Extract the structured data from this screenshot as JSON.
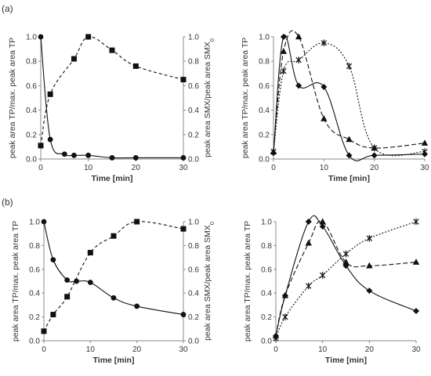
{
  "panel_labels": {
    "a": "(a)",
    "b": "(b)"
  },
  "chart_data": [
    {
      "type": "line",
      "panel": "(a)",
      "position": "left",
      "xlabel": "Time [min]",
      "ylabel": "peak area TP/max. peak area TP",
      "y2label": "peak area SMX/peak area SMX",
      "y2label_sub": "0",
      "xlim": [
        0,
        30
      ],
      "ylim": [
        0,
        1.0
      ],
      "y2lim": [
        0,
        1.0
      ],
      "xticks": [
        0,
        10,
        20,
        30
      ],
      "yticks": [
        "0.0",
        "0.2",
        "0.4",
        "0.6",
        "0.8",
        "1.0"
      ],
      "y2ticks": [
        "0.0",
        "0.2",
        "0.4",
        "0.6",
        "0.8",
        "1.0"
      ],
      "series": [
        {
          "marker": "circle",
          "line": "solid",
          "axis": "left",
          "x": [
            0,
            2,
            5,
            7,
            10,
            15,
            20,
            30
          ],
          "y": [
            1.0,
            0.16,
            0.04,
            0.03,
            0.03,
            0.01,
            0.01,
            0.01
          ]
        },
        {
          "marker": "square",
          "line": "dashed",
          "axis": "right",
          "x": [
            0,
            2,
            7,
            10,
            15,
            20,
            30
          ],
          "y": [
            0.11,
            0.53,
            0.82,
            1.0,
            0.89,
            0.76,
            0.65
          ]
        }
      ]
    },
    {
      "type": "line",
      "panel": "(a)",
      "position": "right",
      "xlabel": "Time [min]",
      "ylabel": "peak area TP/max. peak area TP",
      "xlim": [
        0,
        30
      ],
      "ylim": [
        0,
        1.0
      ],
      "xticks": [
        0,
        10,
        20,
        30
      ],
      "yticks": [
        "0.0",
        "0.2",
        "0.4",
        "0.6",
        "0.8",
        "1.0"
      ],
      "series": [
        {
          "marker": "diamond",
          "line": "solid",
          "x": [
            0,
            2,
            5,
            10,
            15,
            20,
            30
          ],
          "y": [
            0.05,
            1.0,
            0.6,
            0.59,
            0.03,
            0.03,
            0.04
          ]
        },
        {
          "marker": "triangle",
          "line": "longdash",
          "x": [
            0,
            2,
            5,
            10,
            15,
            20,
            30
          ],
          "y": [
            0.06,
            0.88,
            1.0,
            0.33,
            0.16,
            0.09,
            0.13
          ]
        },
        {
          "marker": "star",
          "line": "dotted",
          "x": [
            0,
            2,
            5,
            10,
            15,
            20,
            30
          ],
          "y": [
            0.06,
            0.72,
            0.81,
            0.95,
            0.76,
            0.09,
            0.06
          ]
        }
      ]
    },
    {
      "type": "line",
      "panel": "(b)",
      "position": "left",
      "xlabel": "Time [min]",
      "ylabel": "peak area TP/max. peak area TP",
      "y2label": "peak area SMX/peak area SMX",
      "y2label_sub": "0",
      "xlim": [
        0,
        30
      ],
      "ylim": [
        0,
        1.0
      ],
      "y2lim": [
        0,
        1.0
      ],
      "xticks": [
        0,
        10,
        20,
        30
      ],
      "yticks": [
        "0.0",
        "0.2",
        "0.4",
        "0.6",
        "0.8",
        "1.0"
      ],
      "y2ticks": [
        "0.0",
        "0.2",
        "0.4",
        "0.6",
        "0.8",
        "1.0"
      ],
      "series": [
        {
          "marker": "circle",
          "line": "solid",
          "axis": "left",
          "x": [
            0,
            2,
            5,
            7,
            10,
            15,
            20,
            30
          ],
          "y": [
            1.0,
            0.68,
            0.51,
            0.5,
            0.49,
            0.36,
            0.29,
            0.22
          ]
        },
        {
          "marker": "square",
          "line": "dashed",
          "axis": "right",
          "x": [
            0,
            2,
            5,
            10,
            15,
            20,
            30
          ],
          "y": [
            0.08,
            0.22,
            0.37,
            0.74,
            0.88,
            1.0,
            0.94
          ]
        }
      ]
    },
    {
      "type": "line",
      "panel": "(b)",
      "position": "right",
      "xlabel": "Time [min]",
      "ylabel": "peak area TP/max. peak area TP",
      "xlim": [
        0,
        30
      ],
      "ylim": [
        0,
        1.0
      ],
      "xticks": [
        0,
        10,
        20,
        30
      ],
      "yticks": [
        "0.0",
        "0.2",
        "0.4",
        "0.6",
        "0.8",
        "1.0"
      ],
      "series": [
        {
          "marker": "diamond",
          "line": "solid",
          "x": [
            0,
            2,
            7,
            10,
            15,
            20,
            30
          ],
          "y": [
            0.04,
            0.38,
            1.0,
            0.96,
            0.63,
            0.42,
            0.25
          ]
        },
        {
          "marker": "triangle",
          "line": "longdash",
          "x": [
            0,
            2,
            7,
            10,
            15,
            20,
            30
          ],
          "y": [
            0.04,
            0.38,
            0.82,
            1.0,
            0.66,
            0.63,
            0.66
          ]
        },
        {
          "marker": "star",
          "line": "dotted",
          "x": [
            0,
            2,
            7,
            10,
            15,
            20,
            30
          ],
          "y": [
            0.02,
            0.2,
            0.46,
            0.55,
            0.73,
            0.86,
            1.0
          ]
        }
      ]
    }
  ]
}
